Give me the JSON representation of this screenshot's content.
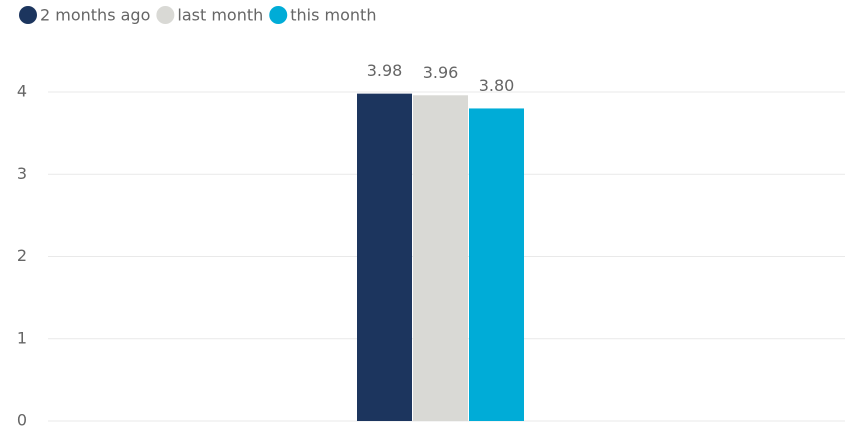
{
  "chart_data": {
    "type": "bar",
    "categories": [
      null
    ],
    "series": [
      {
        "name": "2 months ago",
        "color": "#1c355e",
        "values": [
          3.98
        ]
      },
      {
        "name": "last month",
        "color": "#d9d9d5",
        "values": [
          3.96
        ]
      },
      {
        "name": "this month",
        "color": "#00acd7",
        "values": [
          3.8
        ],
        "value_labels": [
          "3.80"
        ]
      }
    ],
    "ylim": [
      0,
      4
    ],
    "yticks": [
      0,
      1,
      2,
      3,
      4
    ],
    "grid": true,
    "legend": "top-left"
  }
}
